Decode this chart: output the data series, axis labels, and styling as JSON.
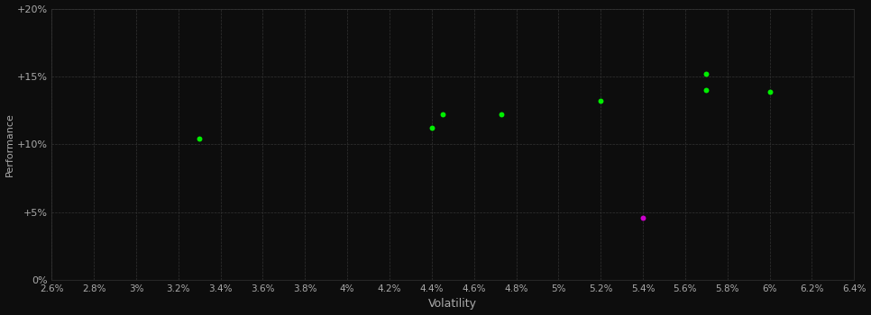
{
  "xlabel": "Volatility",
  "ylabel": "Performance",
  "background_color": "#0d0d0d",
  "plot_bg_color": "#0d0d0d",
  "grid_color": "#333333",
  "text_color": "#aaaaaa",
  "xlim": [
    0.026,
    0.064
  ],
  "ylim": [
    0.0,
    0.2
  ],
  "xticks": [
    0.026,
    0.028,
    0.03,
    0.032,
    0.034,
    0.036,
    0.038,
    0.04,
    0.042,
    0.044,
    0.046,
    0.048,
    0.05,
    0.052,
    0.054,
    0.056,
    0.058,
    0.06,
    0.062,
    0.064
  ],
  "yticks": [
    0.0,
    0.05,
    0.1,
    0.15,
    0.2
  ],
  "ytick_labels": [
    "0%",
    "+5%",
    "+10%",
    "+15%",
    "+20%"
  ],
  "xtick_labels": [
    "2.6%",
    "2.8%",
    "3%",
    "3.2%",
    "3.4%",
    "3.6%",
    "3.8%",
    "4%",
    "4.2%",
    "4.4%",
    "4.6%",
    "4.8%",
    "5%",
    "5.2%",
    "5.4%",
    "5.6%",
    "5.8%",
    "6%",
    "6.2%",
    "6.4%"
  ],
  "green_points_xy": [
    [
      0.033,
      0.104
    ],
    [
      0.044,
      0.112
    ],
    [
      0.0445,
      0.122
    ],
    [
      0.0473,
      0.122
    ],
    [
      0.052,
      0.132
    ],
    [
      0.057,
      0.14
    ],
    [
      0.057,
      0.152
    ],
    [
      0.06,
      0.139
    ]
  ],
  "magenta_points_xy": [
    [
      0.054,
      0.046
    ]
  ],
  "dot_color_green": "#00ee00",
  "dot_color_magenta": "#cc00cc",
  "marker_size": 18
}
